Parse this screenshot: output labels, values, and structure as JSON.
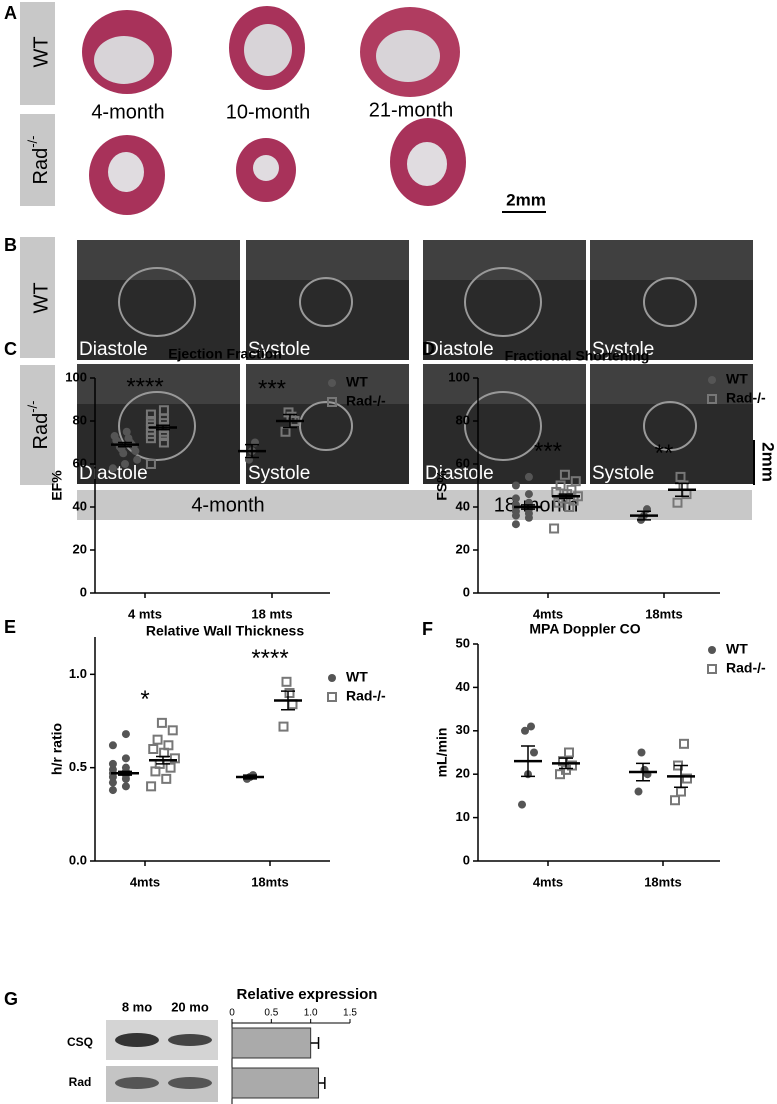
{
  "panel_labels": [
    "A",
    "B",
    "C",
    "D",
    "E",
    "F",
    "G"
  ],
  "panel_a": {
    "rows": [
      {
        "text": "WT"
      },
      {
        "base": "Rad",
        "sup": "-/-"
      }
    ],
    "ages": [
      "4-month",
      "10-month",
      "21-month"
    ],
    "scale": "2mm"
  },
  "panel_b": {
    "rows": [
      {
        "text": "WT"
      },
      {
        "base": "Rad",
        "sup": "-/-"
      }
    ],
    "columns": [
      "Diastole",
      "Systole",
      "Diastole",
      "Systole"
    ],
    "ages": [
      "4-month",
      "18-month"
    ],
    "scale": "2mm"
  },
  "panel_g": {
    "lanes": [
      "8 mo",
      "20 mo"
    ]
  },
  "chart_data": [
    {
      "type": "dot",
      "title": "Ejection Fraction",
      "ylabel": "EF%",
      "categories": [
        "4 mts",
        "18 mts"
      ],
      "ylim": [
        0,
        100
      ],
      "yticks": [
        0,
        20,
        40,
        60,
        80,
        100
      ],
      "annotations": [
        "****",
        "***"
      ],
      "series": [
        {
          "name": "WT",
          "color": "#555555",
          "marker": "circle",
          "points": [
            [
              58,
              60,
              62,
              65,
              66,
              67,
              68,
              68,
              69,
              70,
              70,
              71,
              72,
              73,
              75
            ],
            [
              62,
              66,
              70
            ]
          ],
          "means": [
            69,
            66
          ],
          "errors": [
            1,
            3
          ]
        },
        {
          "name": "Rad-/-",
          "color": "#777777",
          "marker": "square",
          "points": [
            [
              60,
              70,
              72,
              73,
              74,
              75,
              76,
              77,
              78,
              79,
              80,
              81,
              83,
              85
            ],
            [
              75,
              80,
              82,
              84
            ]
          ],
          "means": [
            77,
            80
          ],
          "errors": [
            1,
            3
          ]
        }
      ]
    },
    {
      "type": "dot",
      "title": "Fractional Shortening",
      "ylabel": "FS%",
      "categories": [
        "4mts",
        "18mts"
      ],
      "ylim": [
        0,
        100
      ],
      "yticks": [
        0,
        20,
        40,
        60,
        80,
        100
      ],
      "annotations": [
        "***",
        "**"
      ],
      "series": [
        {
          "name": "WT",
          "color": "#555555",
          "marker": "circle",
          "points": [
            [
              32,
              35,
              36,
              37,
              38,
              39,
              40,
              40,
              41,
              42,
              44,
              46,
              50,
              54
            ],
            [
              34,
              36,
              39
            ]
          ],
          "means": [
            40,
            36
          ],
          "errors": [
            1,
            2
          ]
        },
        {
          "name": "Rad-/-",
          "color": "#777777",
          "marker": "square",
          "points": [
            [
              30,
              40,
              42,
              43,
              44,
              45,
              46,
              47,
              48,
              50,
              52,
              55
            ],
            [
              42,
              46,
              50,
              54
            ]
          ],
          "means": [
            45,
            48
          ],
          "errors": [
            1,
            3
          ]
        }
      ]
    },
    {
      "type": "dot",
      "title": "Relative Wall Thickness",
      "ylabel": "h/r ratio",
      "categories": [
        "4mts",
        "18mts"
      ],
      "ylim": [
        0,
        1.2
      ],
      "yticks": [
        {
          "value": 0,
          "label": "0.0"
        },
        0.5,
        {
          "value": 1,
          "label": "1.0"
        }
      ],
      "annotations": [
        "*",
        "****"
      ],
      "series": [
        {
          "name": "WT",
          "color": "#555555",
          "marker": "circle",
          "points": [
            [
              0.38,
              0.4,
              0.42,
              0.44,
              0.45,
              0.46,
              0.47,
              0.48,
              0.49,
              0.5,
              0.52,
              0.55,
              0.62,
              0.68
            ],
            [
              0.44,
              0.45,
              0.46
            ]
          ],
          "means": [
            0.47,
            0.45
          ],
          "errors": [
            0.01,
            0.01
          ]
        },
        {
          "name": "Rad-/-",
          "color": "#777777",
          "marker": "square",
          "points": [
            [
              0.4,
              0.44,
              0.48,
              0.5,
              0.52,
              0.55,
              0.58,
              0.6,
              0.62,
              0.65,
              0.7,
              0.74
            ],
            [
              0.72,
              0.84,
              0.9,
              0.96
            ]
          ],
          "means": [
            0.54,
            0.86
          ],
          "errors": [
            0.02,
            0.05
          ]
        }
      ]
    },
    {
      "type": "dot",
      "title": "MPA Doppler CO",
      "ylabel": "mL/min",
      "categories": [
        "4mts",
        "18mts"
      ],
      "ylim": [
        0,
        50
      ],
      "yticks": [
        0,
        10,
        20,
        30,
        40,
        50
      ],
      "series": [
        {
          "name": "WT",
          "color": "#555555",
          "marker": "circle",
          "points": [
            [
              13,
              20,
              25,
              30,
              31
            ],
            [
              16,
              20,
              21,
              25
            ]
          ],
          "means": [
            23,
            20.5
          ],
          "errors": [
            3.5,
            2
          ]
        },
        {
          "name": "Rad-/-",
          "color": "#777777",
          "marker": "square",
          "points": [
            [
              20,
              21,
              22,
              23,
              25
            ],
            [
              14,
              16,
              19,
              22,
              27
            ]
          ],
          "means": [
            22.5,
            19.5
          ],
          "errors": [
            1.2,
            2.5
          ]
        }
      ]
    },
    {
      "type": "hbar",
      "title": "Relative expression",
      "categories": [
        "CSQ",
        "Rad"
      ],
      "values": [
        1,
        1.1
      ],
      "errors": [
        0.1,
        0.08
      ],
      "color": "#aaaaaa",
      "xlim": [
        0,
        1.5
      ],
      "xticks": [
        0,
        0.5,
        {
          "value": 1,
          "label": "1.0"
        },
        1.5
      ]
    }
  ]
}
